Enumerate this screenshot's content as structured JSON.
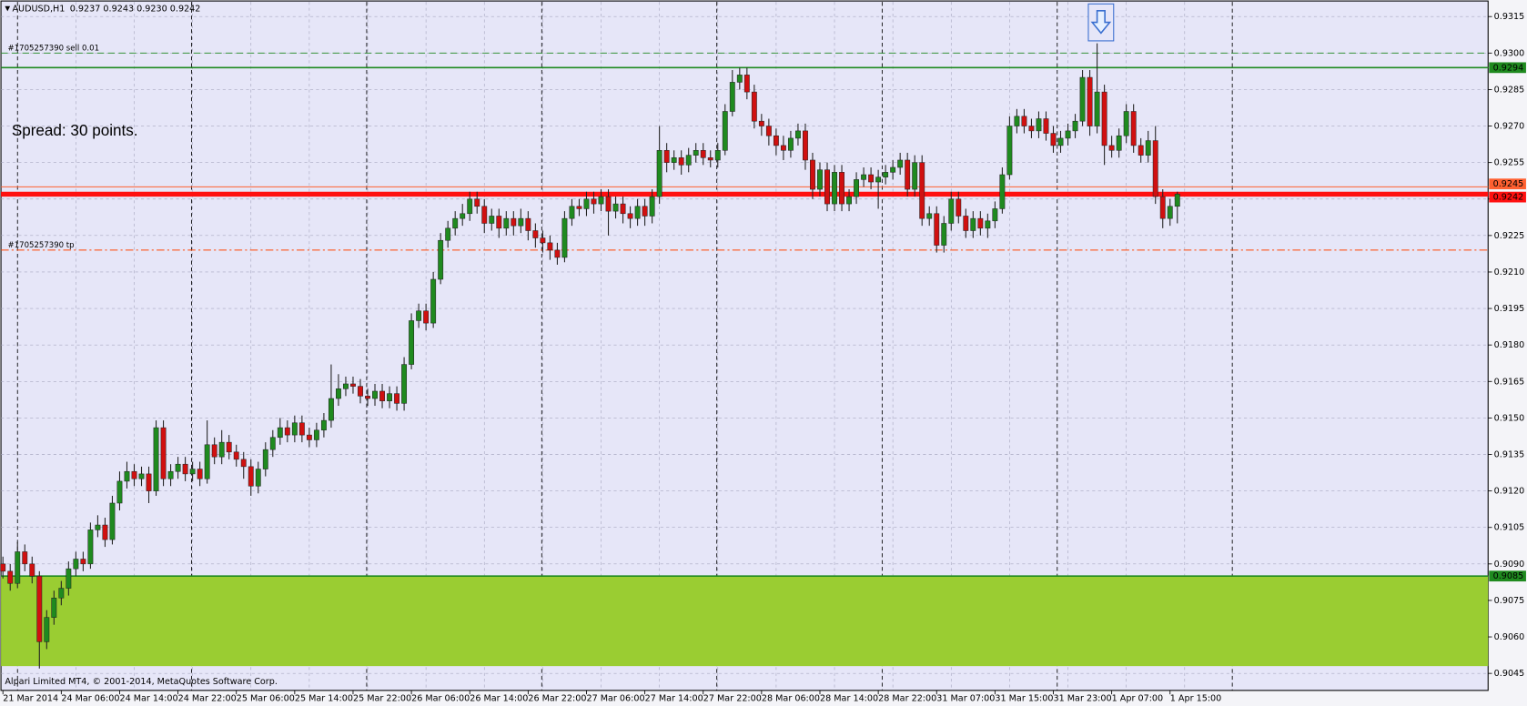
{
  "chart_data": {
    "type": "candlestick",
    "title": "AUDUSD,H1",
    "subtitle": "0.9237 0.9243 0.9230 0.9242",
    "categories": [
      "21 Mar 2014",
      null,
      null,
      null,
      null,
      null,
      null,
      null,
      "24 Mar 06:00",
      null,
      null,
      null,
      null,
      null,
      null,
      null,
      "24 Mar 14:00",
      null,
      null,
      null,
      null,
      null,
      null,
      null,
      "24 Mar 22:00",
      null,
      null,
      null,
      null,
      null,
      null,
      null,
      "25 Mar 06:00",
      null,
      null,
      null,
      null,
      null,
      null,
      null,
      "25 Mar 14:00",
      null,
      null,
      null,
      null,
      null,
      null,
      null,
      "25 Mar 22:00",
      null,
      null,
      null,
      null,
      null,
      null,
      null,
      "26 Mar 06:00",
      null,
      null,
      null,
      null,
      null,
      null,
      null,
      "26 Mar 14:00",
      null,
      null,
      null,
      null,
      null,
      null,
      null,
      "26 Mar 22:00",
      null,
      null,
      null,
      null,
      null,
      null,
      null,
      "27 Mar 06:00",
      null,
      null,
      null,
      null,
      null,
      null,
      null,
      "27 Mar 14:00",
      null,
      null,
      null,
      null,
      null,
      null,
      null,
      "27 Mar 22:00",
      null,
      null,
      null,
      null,
      null,
      null,
      null,
      "28 Mar 06:00",
      null,
      null,
      null,
      null,
      null,
      null,
      null,
      "28 Mar 14:00",
      null,
      null,
      null,
      null,
      null,
      null,
      null,
      "28 Mar 22:00",
      null,
      null,
      null,
      null,
      null,
      null,
      null,
      "31 Mar 07:00",
      null,
      null,
      null,
      null,
      null,
      null,
      null,
      "31 Mar 15:00",
      null,
      null,
      null,
      null,
      null,
      null,
      null,
      "31 Mar 23:00",
      null,
      null,
      null,
      null,
      null,
      null,
      null,
      "1 Apr 07:00",
      null,
      null,
      null,
      null,
      null,
      null,
      null,
      "1 Apr 15:00",
      null
    ],
    "open": [
      0.909,
      0.9087,
      0.9082,
      0.9095,
      0.909,
      0.9085,
      0.9058,
      0.9068,
      0.9076,
      0.908,
      0.9088,
      0.9092,
      0.909,
      0.9104,
      0.9106,
      0.91,
      0.9115,
      0.9124,
      0.9128,
      0.9125,
      0.9127,
      0.912,
      0.9146,
      0.9125,
      0.9128,
      0.9131,
      0.9127,
      0.9129,
      0.9125,
      0.9139,
      0.9134,
      0.914,
      0.9136,
      0.9133,
      0.913,
      0.9122,
      0.9129,
      0.9137,
      0.9142,
      0.9146,
      0.9143,
      0.9148,
      0.9143,
      0.9141,
      0.9145,
      0.9149,
      0.9158,
      0.9162,
      0.9164,
      0.9163,
      0.9159,
      0.9158,
      0.9161,
      0.9157,
      0.916,
      0.9156,
      0.9172,
      0.919,
      0.9194,
      0.9189,
      0.9207,
      0.9223,
      0.9228,
      0.9232,
      0.9234,
      0.924,
      0.9237,
      0.923,
      0.9233,
      0.9228,
      0.9232,
      0.9229,
      0.9232,
      0.9227,
      0.9224,
      0.9222,
      0.9219,
      0.9216,
      0.9232,
      0.9237,
      0.9236,
      0.924,
      0.9238,
      0.9241,
      0.9235,
      0.9238,
      0.9234,
      0.9232,
      0.9237,
      0.9233,
      0.9241,
      0.926,
      0.9255,
      0.9257,
      0.9254,
      0.9258,
      0.926,
      0.9257,
      0.9256,
      0.926,
      0.9276,
      0.9288,
      0.9291,
      0.9284,
      0.9272,
      0.927,
      0.9266,
      0.9262,
      0.926,
      0.9265,
      0.9268,
      0.9256,
      0.9244,
      0.9252,
      0.9238,
      0.9251,
      0.9238,
      0.9241,
      0.9248,
      0.925,
      0.9247,
      0.9249,
      0.9251,
      0.9253,
      0.9256,
      0.9244,
      0.9255,
      0.9232,
      0.9234,
      0.9221,
      0.923,
      0.924,
      0.9233,
      0.9227,
      0.9232,
      0.9228,
      0.9231,
      0.9236,
      0.925,
      0.927,
      0.9274,
      0.927,
      0.9268,
      0.9273,
      0.9267,
      0.9262,
      0.9265,
      0.9268,
      0.9272,
      0.929,
      0.927,
      0.9284,
      0.9262,
      0.926,
      0.9266,
      0.9276,
      0.9262,
      0.9258,
      0.9264,
      0.9241,
      0.9232,
      0.9237
    ],
    "high": [
      0.9093,
      0.909,
      0.9099,
      0.9098,
      0.9093,
      0.9087,
      0.9071,
      0.9079,
      0.9083,
      0.9091,
      0.9095,
      0.9095,
      0.9107,
      0.911,
      0.9109,
      0.9118,
      0.9128,
      0.9132,
      0.9131,
      0.913,
      0.913,
      0.9149,
      0.9149,
      0.9131,
      0.9134,
      0.9134,
      0.9132,
      0.9132,
      0.9149,
      0.9142,
      0.9145,
      0.9143,
      0.9139,
      0.9136,
      0.9133,
      0.9132,
      0.914,
      0.9145,
      0.915,
      0.9149,
      0.9151,
      0.9151,
      0.9146,
      0.9148,
      0.9152,
      0.9172,
      0.9168,
      0.9167,
      0.9167,
      0.9166,
      0.9162,
      0.9164,
      0.9164,
      0.9163,
      0.9163,
      0.9175,
      0.9193,
      0.9197,
      0.9197,
      0.921,
      0.9226,
      0.9231,
      0.9235,
      0.9238,
      0.9243,
      0.9243,
      0.924,
      0.9236,
      0.9236,
      0.9235,
      0.9235,
      0.9236,
      0.9235,
      0.923,
      0.9227,
      0.9225,
      0.9222,
      0.9235,
      0.924,
      0.924,
      0.9243,
      0.9243,
      0.9244,
      0.9244,
      0.9241,
      0.9241,
      0.9237,
      0.924,
      0.924,
      0.9244,
      0.927,
      0.9263,
      0.926,
      0.926,
      0.9261,
      0.9263,
      0.9263,
      0.926,
      0.9263,
      0.9279,
      0.9293,
      0.9294,
      0.9294,
      0.9287,
      0.9275,
      0.9273,
      0.9269,
      0.9266,
      0.9268,
      0.9271,
      0.9271,
      0.9259,
      0.9255,
      0.9255,
      0.9254,
      0.9254,
      0.9244,
      0.9251,
      0.9253,
      0.9253,
      0.9252,
      0.9254,
      0.9256,
      0.9259,
      0.9259,
      0.9258,
      0.9258,
      0.9237,
      0.9237,
      0.9233,
      0.9243,
      0.9243,
      0.9236,
      0.9235,
      0.9235,
      0.9234,
      0.9239,
      0.9253,
      0.9274,
      0.9277,
      0.9277,
      0.9273,
      0.9276,
      0.9276,
      0.927,
      0.9268,
      0.9271,
      0.9275,
      0.9293,
      0.9293,
      0.9304,
      0.9287,
      0.9266,
      0.9269,
      0.9279,
      0.9279,
      0.9265,
      0.9268,
      0.927,
      0.9244,
      0.924,
      0.9243
    ],
    "low": [
      0.9084,
      0.9079,
      0.908,
      0.9087,
      0.9082,
      0.9047,
      0.9055,
      0.9065,
      0.9073,
      0.9077,
      0.9085,
      0.9087,
      0.9088,
      0.9101,
      0.9097,
      0.9098,
      0.9112,
      0.9121,
      0.9122,
      0.9122,
      0.9115,
      0.9118,
      0.9122,
      0.9122,
      0.9125,
      0.9124,
      0.9124,
      0.9122,
      0.9123,
      0.9131,
      0.9131,
      0.9133,
      0.913,
      0.9125,
      0.9118,
      0.9119,
      0.9126,
      0.9134,
      0.9139,
      0.914,
      0.914,
      0.914,
      0.9138,
      0.9138,
      0.9142,
      0.9146,
      0.9155,
      0.9159,
      0.916,
      0.9156,
      0.9155,
      0.9155,
      0.9154,
      0.9154,
      0.9153,
      0.9153,
      0.917,
      0.9187,
      0.9186,
      0.9187,
      0.9205,
      0.922,
      0.9225,
      0.9229,
      0.9231,
      0.9234,
      0.9226,
      0.9227,
      0.9224,
      0.9225,
      0.9225,
      0.9226,
      0.9223,
      0.922,
      0.9218,
      0.9215,
      0.9213,
      0.9214,
      0.9229,
      0.9233,
      0.9233,
      0.9234,
      0.9235,
      0.9225,
      0.9232,
      0.923,
      0.9228,
      0.9229,
      0.9229,
      0.923,
      0.9238,
      0.9251,
      0.9252,
      0.925,
      0.9251,
      0.9255,
      0.9254,
      0.9253,
      0.9253,
      0.9258,
      0.9274,
      0.9285,
      0.9281,
      0.9269,
      0.9266,
      0.9262,
      0.9258,
      0.9256,
      0.9257,
      0.9262,
      0.9252,
      0.924,
      0.9241,
      0.9235,
      0.9235,
      0.9235,
      0.9235,
      0.9238,
      0.9245,
      0.9244,
      0.9236,
      0.9246,
      0.9248,
      0.925,
      0.9241,
      0.9241,
      0.9229,
      0.9229,
      0.9218,
      0.9218,
      0.9227,
      0.923,
      0.9224,
      0.9224,
      0.9225,
      0.9224,
      0.9228,
      0.9234,
      0.9248,
      0.9267,
      0.9267,
      0.9265,
      0.9265,
      0.9264,
      0.9259,
      0.9259,
      0.9262,
      0.9265,
      0.927,
      0.9266,
      0.9267,
      0.9254,
      0.9257,
      0.9257,
      0.9263,
      0.9259,
      0.9255,
      0.9255,
      0.9238,
      0.9228,
      0.9229,
      0.923
    ],
    "close": [
      0.9087,
      0.9082,
      0.9095,
      0.909,
      0.9085,
      0.9058,
      0.9068,
      0.9076,
      0.908,
      0.9088,
      0.9092,
      0.909,
      0.9104,
      0.9106,
      0.91,
      0.9115,
      0.9124,
      0.9128,
      0.9125,
      0.9127,
      0.912,
      0.9146,
      0.9125,
      0.9128,
      0.9131,
      0.9127,
      0.9129,
      0.9125,
      0.9139,
      0.9134,
      0.914,
      0.9136,
      0.9133,
      0.913,
      0.9122,
      0.9129,
      0.9137,
      0.9142,
      0.9146,
      0.9143,
      0.9148,
      0.9143,
      0.9141,
      0.9145,
      0.9149,
      0.9158,
      0.9162,
      0.9164,
      0.9163,
      0.9159,
      0.9158,
      0.9161,
      0.9157,
      0.916,
      0.9156,
      0.9172,
      0.919,
      0.9194,
      0.9189,
      0.9207,
      0.9223,
      0.9228,
      0.9232,
      0.9234,
      0.924,
      0.9237,
      0.923,
      0.9233,
      0.9228,
      0.9232,
      0.9229,
      0.9232,
      0.9227,
      0.9224,
      0.9222,
      0.9219,
      0.9216,
      0.9232,
      0.9237,
      0.9236,
      0.924,
      0.9238,
      0.9241,
      0.9235,
      0.9238,
      0.9234,
      0.9232,
      0.9237,
      0.9233,
      0.9241,
      0.926,
      0.9255,
      0.9257,
      0.9254,
      0.9258,
      0.926,
      0.9257,
      0.9256,
      0.926,
      0.9276,
      0.9288,
      0.9291,
      0.9284,
      0.9272,
      0.927,
      0.9266,
      0.9262,
      0.926,
      0.9265,
      0.9268,
      0.9256,
      0.9244,
      0.9252,
      0.9238,
      0.9251,
      0.9238,
      0.9241,
      0.9248,
      0.925,
      0.9247,
      0.9249,
      0.9251,
      0.9253,
      0.9256,
      0.9244,
      0.9255,
      0.9232,
      0.9234,
      0.9221,
      0.923,
      0.924,
      0.9233,
      0.9227,
      0.9232,
      0.9228,
      0.9231,
      0.9236,
      0.925,
      0.927,
      0.9274,
      0.927,
      0.9268,
      0.9273,
      0.9267,
      0.9262,
      0.9265,
      0.9268,
      0.9272,
      0.929,
      0.927,
      0.9284,
      0.9262,
      0.926,
      0.9266,
      0.9276,
      0.9262,
      0.9258,
      0.9264,
      0.9241,
      0.9232,
      0.9237,
      0.9242
    ],
    "up_color": "#1f8a1f",
    "down_color": "#d01010",
    "ylim": [
      0.9038,
      0.9321
    ],
    "yticks": [
      0.9315,
      {
        "value": 0.93,
        "label": "0.9300"
      },
      0.9285,
      {
        "value": 0.927,
        "label": "0.9270"
      },
      0.9255,
      {
        "value": 0.924,
        "label": "0.9240"
      },
      0.9225,
      {
        "value": 0.921,
        "label": "0.9210"
      },
      0.9195,
      {
        "value": 0.918,
        "label": "0.9180"
      },
      0.9165,
      {
        "value": 0.915,
        "label": "0.9150"
      },
      0.9135,
      {
        "value": 0.912,
        "label": "0.9120"
      },
      0.9105,
      {
        "value": 0.909,
        "label": "0.9090"
      },
      0.9075,
      {
        "value": 0.906,
        "label": "0.9060"
      },
      0.9045
    ],
    "grid": true,
    "annotation": {
      "text": "Spread: 30 points.",
      "color": "#ff0000"
    },
    "order_lines": [
      {
        "label": "#1705257390 sell 0.01",
        "value": 0.93,
        "color": "#1f8a1f",
        "style": "dashed"
      },
      {
        "label": "#1705257390 tp",
        "value": 0.9219,
        "color": "#ff4500",
        "style": "dashdot"
      }
    ],
    "price_lines": [
      {
        "value": 0.9294,
        "color": "#1f8a1f"
      },
      {
        "value": 0.9245,
        "color": "#ff6030"
      },
      {
        "value": 0.9242,
        "color": "#ff1010"
      }
    ],
    "zone": {
      "from": 0.9085,
      "to": 0.9048,
      "color": "#9acd32",
      "border": "#1f8a1f"
    },
    "footer": "Alpari Limited MT4, © 2001-2014, MetaQuotes Software Corp."
  }
}
